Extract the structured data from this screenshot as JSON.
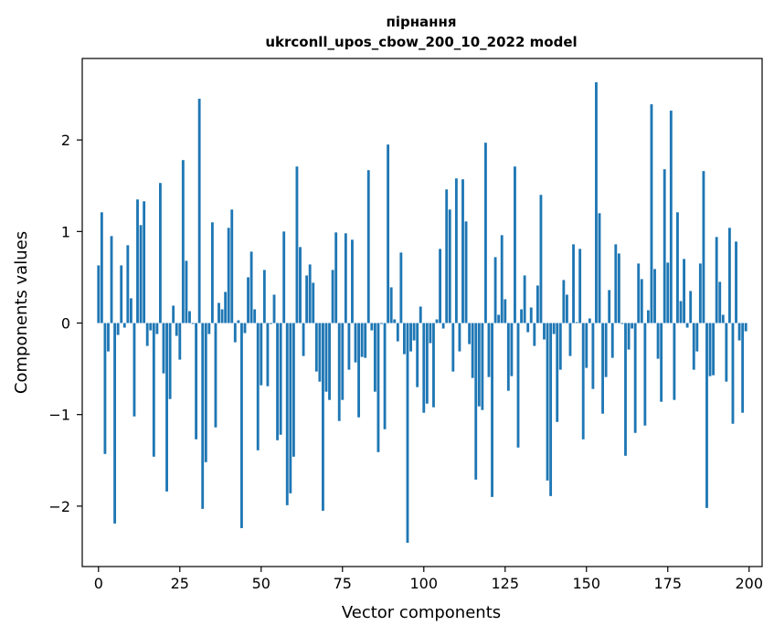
{
  "chart_data": {
    "type": "bar",
    "title": "пірнання",
    "subtitle": "ukrconll_upos_cbow_200_10_2022 model",
    "xlabel": "Vector components",
    "ylabel": "Components values",
    "xlim": [
      -5,
      204
    ],
    "ylim": [
      -2.66,
      2.89
    ],
    "xticks": [
      0,
      25,
      50,
      75,
      100,
      125,
      150,
      175,
      200
    ],
    "xtick_labels": [
      "0",
      "25",
      "50",
      "75",
      "100",
      "125",
      "150",
      "175",
      "200"
    ],
    "yticks": [
      -2,
      -1,
      0,
      1,
      2
    ],
    "ytick_labels": [
      "−2",
      "−1",
      "0",
      "1",
      "2"
    ],
    "grid": false,
    "bar_color": "#1f77b4",
    "values": [
      0.63,
      1.21,
      -1.43,
      -0.31,
      0.95,
      -2.19,
      -0.13,
      0.63,
      -0.05,
      0.85,
      0.27,
      -1.02,
      1.35,
      1.07,
      1.33,
      -0.25,
      -0.08,
      -1.46,
      -0.12,
      1.53,
      -0.55,
      -1.84,
      -0.83,
      0.19,
      -0.14,
      -0.4,
      1.78,
      0.68,
      0.13,
      -0.01,
      -1.27,
      2.45,
      -2.03,
      -1.52,
      -0.12,
      1.1,
      -1.14,
      0.22,
      0.15,
      0.34,
      1.04,
      1.24,
      -0.21,
      0.03,
      -2.24,
      -0.11,
      0.5,
      0.78,
      0.15,
      -1.39,
      -0.68,
      0.58,
      -0.69,
      -0.01,
      0.31,
      -1.28,
      -1.22,
      1.0,
      -1.99,
      -1.86,
      -1.46,
      1.71,
      0.83,
      -0.36,
      0.52,
      0.64,
      0.44,
      -0.53,
      -0.64,
      -2.05,
      -0.75,
      -0.84,
      0.58,
      0.99,
      -1.07,
      -0.84,
      0.98,
      -0.51,
      0.91,
      -0.43,
      -1.03,
      -0.37,
      -0.38,
      1.67,
      -0.08,
      -0.75,
      -1.41,
      -0.01,
      -1.16,
      1.95,
      0.39,
      0.04,
      -0.2,
      0.77,
      -0.34,
      -2.4,
      -0.31,
      -0.19,
      -0.7,
      0.18,
      -0.98,
      -0.88,
      -0.22,
      -0.92,
      0.04,
      0.81,
      -0.06,
      1.46,
      1.24,
      -0.53,
      1.58,
      -0.31,
      1.57,
      1.11,
      -0.23,
      -0.6,
      -1.71,
      -0.91,
      -0.95,
      1.97,
      -0.59,
      -1.9,
      0.72,
      0.09,
      0.96,
      0.26,
      -0.74,
      -0.58,
      1.71,
      -1.36,
      0.15,
      0.52,
      -0.1,
      0.17,
      -0.25,
      0.41,
      1.4,
      -0.18,
      -1.72,
      -1.89,
      -0.12,
      -1.08,
      -0.51,
      0.47,
      0.31,
      -0.36,
      0.86,
      0.01,
      0.81,
      -1.27,
      -0.49,
      0.05,
      -0.72,
      2.63,
      1.2,
      -0.99,
      -0.59,
      0.36,
      -0.38,
      0.86,
      0.76,
      -0.01,
      -1.45,
      -0.29,
      -0.06,
      -1.2,
      0.65,
      0.48,
      -1.12,
      0.14,
      2.39,
      0.59,
      -0.39,
      -0.86,
      1.68,
      0.66,
      2.32,
      -0.84,
      1.21,
      0.24,
      0.7,
      -0.05,
      0.35,
      -0.51,
      -0.31,
      0.65,
      1.66,
      -2.02,
      -0.58,
      -0.57,
      0.94,
      0.45,
      0.09,
      -0.64,
      1.04,
      -1.1,
      0.89,
      -0.19,
      -0.98,
      -0.09
    ]
  }
}
